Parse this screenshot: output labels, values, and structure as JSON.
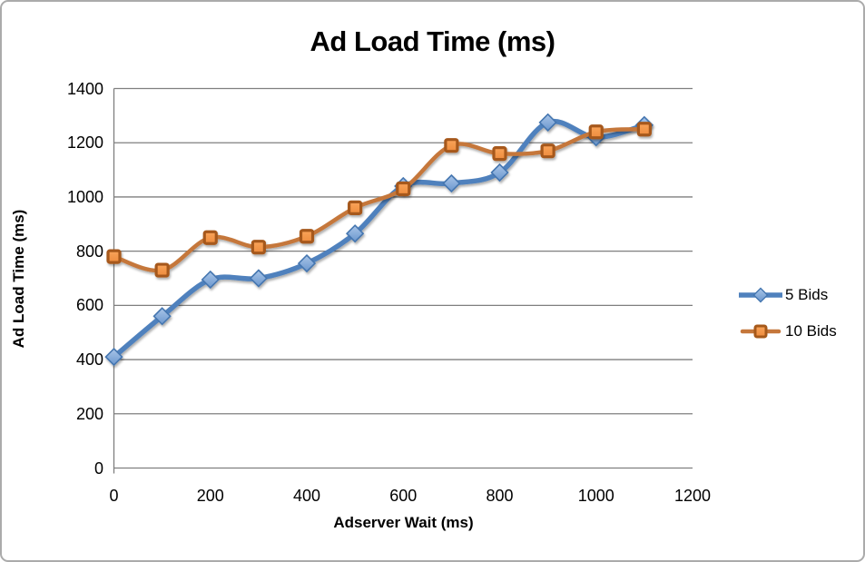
{
  "frame": {
    "border_color": "#ABABAB",
    "background": "#FFFFFF"
  },
  "chart_data": {
    "type": "line",
    "title": "Ad Load Time (ms)",
    "xlabel": "Adserver Wait (ms)",
    "ylabel": "Ad Load Time (ms)",
    "x": [
      0,
      100,
      200,
      300,
      400,
      500,
      600,
      700,
      800,
      900,
      1000,
      1100
    ],
    "series": [
      {
        "name": "5 Bids",
        "marker": "diamond",
        "line_color": "#4F81BD",
        "marker_fill": "#8FB1DE",
        "marker_stroke": "#4476B0",
        "values": [
          410,
          560,
          695,
          700,
          755,
          865,
          1040,
          1050,
          1090,
          1275,
          1220,
          1265
        ]
      },
      {
        "name": "10 Bids",
        "marker": "square",
        "line_color": "#C5773B",
        "marker_fill": "#F79646",
        "marker_stroke": "#A6591B",
        "values": [
          780,
          730,
          850,
          815,
          855,
          960,
          1030,
          1190,
          1160,
          1170,
          1240,
          1250
        ]
      }
    ],
    "xlim": [
      0,
      1200
    ],
    "ylim": [
      0,
      1400
    ],
    "x_ticks": [
      0,
      200,
      400,
      600,
      800,
      1000,
      1200
    ],
    "y_ticks": [
      0,
      200,
      400,
      600,
      800,
      1000,
      1200,
      1400
    ],
    "grid": "horizontal",
    "gridline_color": "#7F7F7F",
    "axis_color": "#7F7F7F",
    "legend_position": "right",
    "smooth": true
  }
}
